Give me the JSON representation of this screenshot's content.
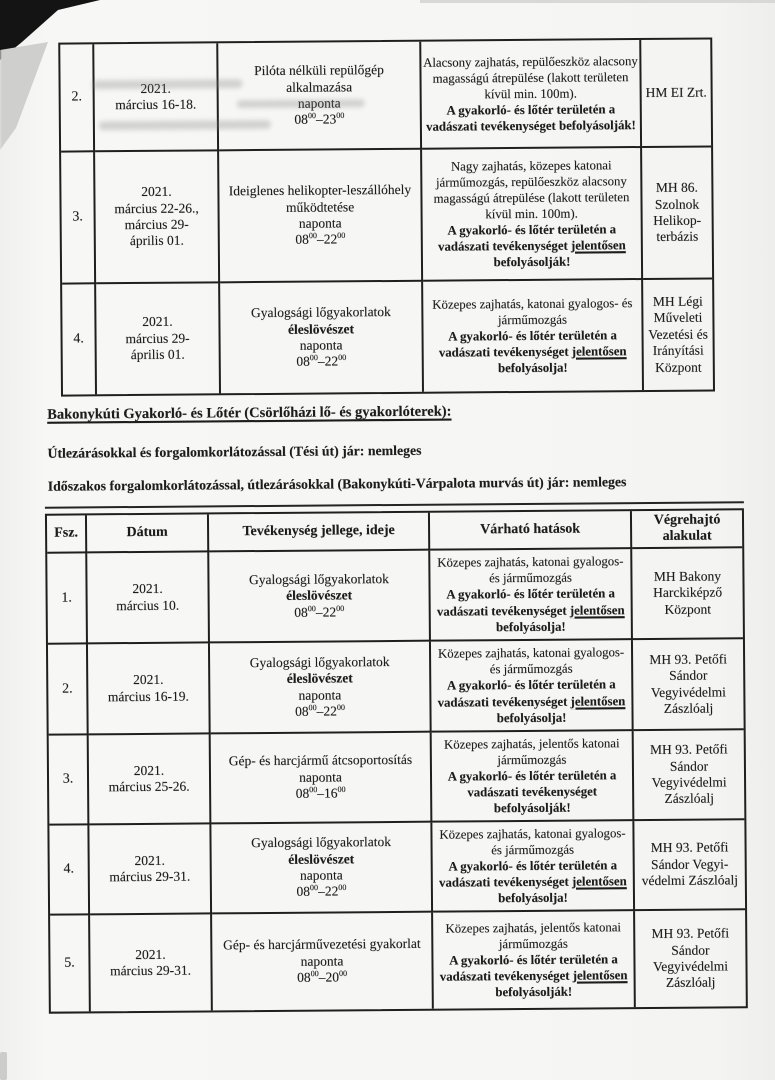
{
  "colors": {
    "ink": "#1c1c1c",
    "paper": "#f6f6f4"
  },
  "page": {
    "section_heading": "Bakonykúti Gyakorló- és Lőtér (Csörlőházi lő- és gyakorlóterek):",
    "road_note_1": "Útlezárásokkal és forgalomkorlátozással (Tési út) jár: nemleges",
    "road_note_2": "Időszakos forgalomkorlátozással, útlezárásokkal (Bakonykúti-Várpalota murvás út) jár: nemleges"
  },
  "table1": {
    "rows": [
      {
        "num": "2.",
        "date_lines": [
          "2021.",
          "március 16-18."
        ],
        "activity_lines": [
          {
            "t": "Pilóta nélküli repülőgép alkalmazása"
          },
          {
            "t": "naponta"
          },
          {
            "t": "08^{00}–23^{00}"
          }
        ],
        "effects": {
          "normal": "Alacsony zajhatás, repülőeszköz alacsony magasságú átrepülése (lakott területen kívül min. 100m).",
          "bold": "A gyakorló- és lőtér területén a vadászati tevékenységet befolyásolják!"
        },
        "unit": "HM EI Zrt."
      },
      {
        "num": "3.",
        "date_lines": [
          "2021.",
          "március 22-26.,",
          "március 29-",
          "április 01."
        ],
        "activity_lines": [
          {
            "t": "Ideiglenes helikopter-leszállóhely működtetése"
          },
          {
            "t": "naponta"
          },
          {
            "t": "08^{00}–22^{00}"
          }
        ],
        "effects": {
          "normal": "Nagy zajhatás, közepes katonai járműmozgás, repülőeszköz alacsony magasságú átrepülése (lakott területen kívül min. 100m).",
          "bold": "A gyakorló- és lőtér területén a vadászati tevékenységet __jelentősen__ befolyásolják!"
        },
        "unit": "MH 86. Szolnok Helikop-terbázis"
      },
      {
        "num": "4.",
        "date_lines": [
          "2021.",
          "március 29-",
          "április 01."
        ],
        "activity_lines": [
          {
            "t": "Gyalogsági lőgyakorlatok"
          },
          {
            "t": "éleslövészet",
            "b": true
          },
          {
            "t": "naponta"
          },
          {
            "t": "08^{00}–22^{00}"
          }
        ],
        "effects": {
          "normal": "Közepes zajhatás, katonai gyalogos- és járműmozgás",
          "bold": "A gyakorló- és lőtér területén a vadászati tevékenységet __jelentősen__ befolyásolja!"
        },
        "unit": "MH Légi Műveleti Vezetési és Irányítási Központ"
      }
    ]
  },
  "table2": {
    "headers": [
      "Fsz.",
      "Dátum",
      "Tevékenység jellege, ideje",
      "Várható hatások",
      "Végrehajtó alakulat"
    ],
    "rows": [
      {
        "num": "1.",
        "date_lines": [
          "2021.",
          "március 10."
        ],
        "activity_lines": [
          {
            "t": "Gyalogsági lőgyakorlatok"
          },
          {
            "t": "éleslövészet",
            "b": true
          },
          {
            "t": "08^{00}–22^{00}"
          }
        ],
        "effects": {
          "normal": "Közepes zajhatás, katonai gyalogos- és járműmozgás",
          "bold": "A gyakorló- és lőtér területén a vadászati tevékenységet __jelentősen__ befolyásolja!"
        },
        "unit": "MH Bakony Harckiképző Központ"
      },
      {
        "num": "2.",
        "date_lines": [
          "2021.",
          "március 16-19."
        ],
        "activity_lines": [
          {
            "t": "Gyalogsági lőgyakorlatok"
          },
          {
            "t": "éleslövészet",
            "b": true
          },
          {
            "t": "naponta"
          },
          {
            "t": "08^{00}–22^{00}"
          }
        ],
        "effects": {
          "normal": "Közepes zajhatás, katonai gyalogos- és járműmozgás",
          "bold": "A gyakorló- és lőtér területén a vadászati tevékenységet __jelentősen__ befolyásolja!"
        },
        "unit": "MH 93. Petőfi Sándor Vegyivédelmi Zászlóalj"
      },
      {
        "num": "3.",
        "date_lines": [
          "2021.",
          "március 25-26."
        ],
        "activity_lines": [
          {
            "t": "Gép- és harcjármű átcsoportosítás"
          },
          {
            "t": "naponta"
          },
          {
            "t": "08^{00}–16^{00}"
          }
        ],
        "effects": {
          "normal": "Közepes zajhatás, jelentős katonai járműmozgás",
          "bold": "A gyakorló- és lőtér területén a vadászati tevékenységet befolyásolják!"
        },
        "unit": "MH 93. Petőfi Sándor Vegyivédelmi Zászlóalj"
      },
      {
        "num": "4.",
        "date_lines": [
          "2021.",
          "március 29-31."
        ],
        "activity_lines": [
          {
            "t": "Gyalogsági lőgyakorlatok"
          },
          {
            "t": "éleslövészet",
            "b": true
          },
          {
            "t": "naponta"
          },
          {
            "t": "08^{00}–22^{00}"
          }
        ],
        "effects": {
          "normal": "Közepes zajhatás, katonai gyalogos- és járműmozgás",
          "bold": "A gyakorló- és lőtér területén a vadászati tevékenységet __jelentősen__ befolyásolja!"
        },
        "unit": "MH 93. Petőfi Sándor Vegyi-védelmi Zászlóalj"
      },
      {
        "num": "5.",
        "date_lines": [
          "2021.",
          "március 29-31."
        ],
        "activity_lines": [
          {
            "t": "Gép- és harcjárművezetési gyakorlat"
          },
          {
            "t": "naponta"
          },
          {
            "t": "08^{00}–20^{00}"
          }
        ],
        "effects": {
          "normal": "Közepes zajhatás, jelentős katonai járműmozgás",
          "bold": "A gyakorló- és lőtér területén a vadászati tevékenységet __jelentősen__ befolyásolják!"
        },
        "unit": "MH 93. Petőfi Sándor Vegyivédelmi Zászlóalj"
      }
    ]
  }
}
